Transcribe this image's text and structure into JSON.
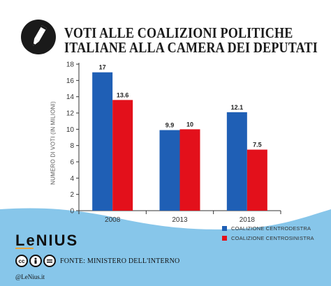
{
  "title": {
    "line1": "VOTI ALLE COALIZIONI POLITICHE",
    "line2": "ITALIANE ALLA CAMERA DEI DEPUTATI"
  },
  "logo_icon": "pencil-icon",
  "colors": {
    "series1": "#1f5fb5",
    "series2": "#e3101b",
    "wave": "#87c6ea",
    "axis": "#333333",
    "text": "#1a1a1a"
  },
  "chart_data": {
    "type": "bar",
    "categories": [
      "2008",
      "2013",
      "2018"
    ],
    "series": [
      {
        "name": "COALIZIONE CENTRODESTRA",
        "values": [
          17,
          9.9,
          12.1
        ]
      },
      {
        "name": "COALIZIONE CENTROSINISTRA",
        "values": [
          13.6,
          10,
          7.5
        ]
      }
    ],
    "data_labels": [
      [
        "17",
        "9.9",
        "12.1"
      ],
      [
        "13.6",
        "10",
        "7.5"
      ]
    ],
    "ylabel": "NUMERO DI VOTI (IN MILIONI)",
    "xlabel": "",
    "ylim": [
      0,
      18
    ],
    "yticks": [
      0,
      2,
      4,
      6,
      8,
      10,
      12,
      14,
      16,
      18
    ],
    "grid": false,
    "legend_position": "bottom-right"
  },
  "footer": {
    "brand": "LeNIUS",
    "source": "FONTE: MINISTERO DELL'INTERNO",
    "handle": "@LeNius.it",
    "license_icons": [
      "cc-icon",
      "attribution-icon",
      "no-derivatives-icon"
    ]
  }
}
